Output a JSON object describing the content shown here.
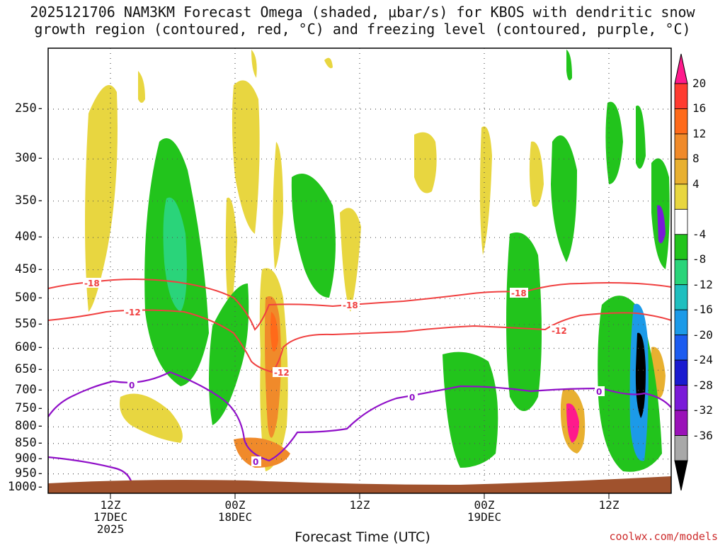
{
  "chart_data": {
    "type": "heatmap",
    "title": "2025121706 NAM3KM Forecast Omega (shaded, μbar/s) for KBOS with dendritic snow",
    "subtitle": "growth region (contoured, red, °C) and freezing level (contoured, purple, °C)",
    "xlabel": "Forecast Time (UTC)",
    "ylabel": "",
    "credit": "coolwx.com/models",
    "y_pressure_levels": [
      "250",
      "300",
      "350",
      "400",
      "450",
      "500",
      "550",
      "600",
      "650",
      "700",
      "750",
      "800",
      "850",
      "900",
      "950",
      "1000"
    ],
    "x_ticks": [
      {
        "hour": 6,
        "line1": "12Z",
        "line2": "17DEC",
        "line3": "2025"
      },
      {
        "hour": 18,
        "line1": "00Z",
        "line2": "18DEC",
        "line3": ""
      },
      {
        "hour": 30,
        "line1": "12Z",
        "line2": "",
        "line3": ""
      },
      {
        "hour": 42,
        "line1": "00Z",
        "line2": "19DEC",
        "line3": ""
      },
      {
        "hour": 54,
        "line1": "12Z",
        "line2": "",
        "line3": ""
      }
    ],
    "x_range_hours": [
      0,
      60
    ],
    "colorbar": {
      "labels": [
        "20",
        "16",
        "12",
        "8",
        "4",
        "-4",
        "-8",
        "-12",
        "-16",
        "-20",
        "-24",
        "-28",
        "-32",
        "-36"
      ],
      "colors": [
        "#ff1a8c",
        "#ff3b30",
        "#ff6a1a",
        "#f08a2a",
        "#e8b030",
        "#e8d640",
        "#ffffff",
        "#22c41c",
        "#2ad47a",
        "#1fbfbf",
        "#1c9ae8",
        "#1c5cf0",
        "#1a1ad0",
        "#7a1ad8",
        "#9a12b8",
        "#a8a8a8",
        "#000000"
      ]
    },
    "contour_labels": {
      "dgz_upper": "-18",
      "dgz_lower": "-12",
      "freezing": "0"
    },
    "contour_colors": {
      "dgz": "#f04040",
      "freezing": "#9010c8",
      "ground": "#a0522d"
    }
  }
}
